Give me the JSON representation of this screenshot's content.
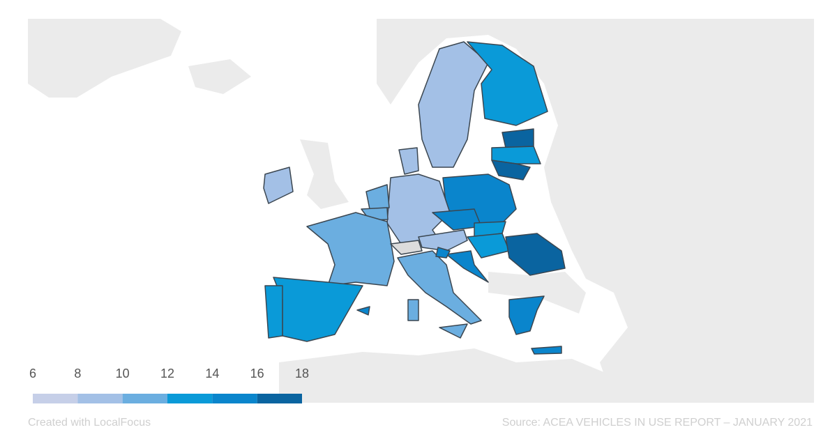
{
  "legend": {
    "ticks": [
      6,
      8,
      10,
      12,
      14,
      16,
      18
    ],
    "colors": [
      "#c6cfe8",
      "#a3c0e6",
      "#6baee0",
      "#0a9ad8",
      "#0a85cc",
      "#0a64a0"
    ]
  },
  "footer": {
    "credit": "Created with LocalFocus",
    "source": "Source: ACEA VEHICLES IN USE REPORT – JANUARY 2021"
  }
}
